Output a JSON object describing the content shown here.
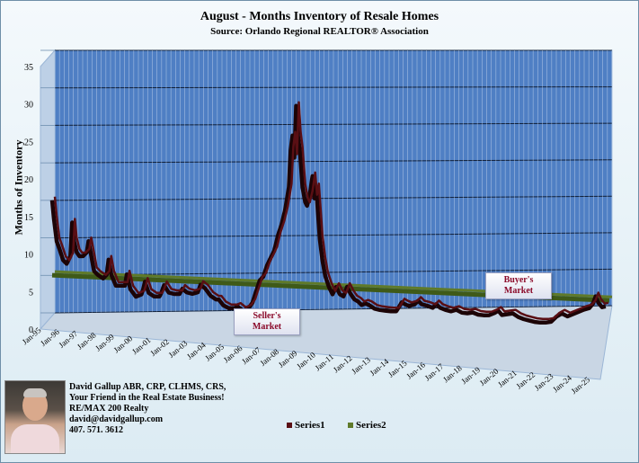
{
  "chart_data": {
    "type": "line",
    "title": "August - Months Inventory of Resale Homes",
    "subtitle": "Source: Orlando Regional REALTOR® Association",
    "ylabel": "Months of Inventory",
    "xlabel": "",
    "ylim": [
      0,
      35
    ],
    "yticks": [
      0,
      5,
      10,
      15,
      20,
      25,
      30,
      35
    ],
    "grid": true,
    "legend_placement": "bottom",
    "x_tick_labels": [
      "Jan-95",
      "Jan-96",
      "Jan-97",
      "Jan-98",
      "Jan-99",
      "Jan-00",
      "Jan-01",
      "Jan-02",
      "Jan-03",
      "Jan-04",
      "Jan-05",
      "Jan-06",
      "Jan-07",
      "Jan-08",
      "Jan-09",
      "Jan-10",
      "Jan-11",
      "Jan-12",
      "Jan-13",
      "Jan-14",
      "Jan-15",
      "Jan-16",
      "Jan-17",
      "Jan-18",
      "Jan-19",
      "Jan-20",
      "Jan-21",
      "Jan-22",
      "Jan-23",
      "Jan-24",
      "Jan-25"
    ],
    "x_start_year": 1995,
    "x_end_year": 2025.6,
    "series": [
      {
        "name": "Series1",
        "color": "#5a0f14",
        "points": [
          [
            1995.0,
            15.5
          ],
          [
            1995.1,
            13.0
          ],
          [
            1995.25,
            10.0
          ],
          [
            1995.4,
            9.0
          ],
          [
            1995.6,
            7.5
          ],
          [
            1995.8,
            7.0
          ],
          [
            1996.0,
            8.0
          ],
          [
            1996.1,
            12.5
          ],
          [
            1996.2,
            10.0
          ],
          [
            1996.35,
            8.5
          ],
          [
            1996.5,
            8.0
          ],
          [
            1996.7,
            8.0
          ],
          [
            1996.9,
            8.5
          ],
          [
            1997.0,
            10.0
          ],
          [
            1997.15,
            8.0
          ],
          [
            1997.3,
            6.0
          ],
          [
            1997.5,
            5.5
          ],
          [
            1997.8,
            5.0
          ],
          [
            1998.0,
            5.5
          ],
          [
            1998.1,
            7.5
          ],
          [
            1998.25,
            5.5
          ],
          [
            1998.5,
            4.0
          ],
          [
            1998.8,
            4.0
          ],
          [
            1999.0,
            4.0
          ],
          [
            1999.1,
            5.5
          ],
          [
            1999.3,
            3.5
          ],
          [
            1999.6,
            2.5
          ],
          [
            1999.9,
            2.8
          ],
          [
            2000.0,
            3.5
          ],
          [
            2000.1,
            4.5
          ],
          [
            2000.3,
            3.0
          ],
          [
            2000.6,
            2.5
          ],
          [
            2000.9,
            2.5
          ],
          [
            2001.0,
            3.0
          ],
          [
            2001.15,
            4.0
          ],
          [
            2001.4,
            3.0
          ],
          [
            2001.7,
            2.8
          ],
          [
            2002.0,
            2.8
          ],
          [
            2002.15,
            3.5
          ],
          [
            2002.4,
            3.0
          ],
          [
            2002.7,
            2.8
          ],
          [
            2003.0,
            3.0
          ],
          [
            2003.15,
            4.0
          ],
          [
            2003.4,
            3.5
          ],
          [
            2003.7,
            2.5
          ],
          [
            2004.0,
            2.0
          ],
          [
            2004.15,
            2.0
          ],
          [
            2004.4,
            1.2
          ],
          [
            2004.7,
            0.8
          ],
          [
            2005.0,
            0.8
          ],
          [
            2005.2,
            1.0
          ],
          [
            2005.5,
            0.4
          ],
          [
            2005.8,
            0.8
          ],
          [
            2006.0,
            1.5
          ],
          [
            2006.2,
            3.0
          ],
          [
            2006.4,
            4.5
          ],
          [
            2006.6,
            5.0
          ],
          [
            2006.8,
            6.5
          ],
          [
            2007.0,
            7.5
          ],
          [
            2007.2,
            8.5
          ],
          [
            2007.4,
            10.5
          ],
          [
            2007.6,
            12.0
          ],
          [
            2007.8,
            14.0
          ],
          [
            2008.0,
            17.0
          ],
          [
            2008.1,
            22.0
          ],
          [
            2008.2,
            24.0
          ],
          [
            2008.3,
            21.0
          ],
          [
            2008.4,
            28.0
          ],
          [
            2008.5,
            24.0
          ],
          [
            2008.6,
            22.0
          ],
          [
            2008.75,
            17.0
          ],
          [
            2008.9,
            15.0
          ],
          [
            2009.0,
            14.5
          ],
          [
            2009.15,
            16.0
          ],
          [
            2009.3,
            18.5
          ],
          [
            2009.4,
            15.5
          ],
          [
            2009.5,
            17.0
          ],
          [
            2009.6,
            13.5
          ],
          [
            2009.7,
            10.0
          ],
          [
            2009.85,
            7.0
          ],
          [
            2010.0,
            5.0
          ],
          [
            2010.2,
            3.5
          ],
          [
            2010.4,
            2.5
          ],
          [
            2010.6,
            3.5
          ],
          [
            2010.8,
            2.5
          ],
          [
            2011.0,
            2.2
          ],
          [
            2011.2,
            3.5
          ],
          [
            2011.4,
            2.5
          ],
          [
            2011.6,
            1.8
          ],
          [
            2011.8,
            1.5
          ],
          [
            2012.0,
            1.0
          ],
          [
            2012.2,
            1.2
          ],
          [
            2012.4,
            1.0
          ],
          [
            2012.7,
            0.5
          ],
          [
            2013.0,
            0.3
          ],
          [
            2013.3,
            0.2
          ],
          [
            2013.6,
            0.1
          ],
          [
            2013.9,
            0.1
          ],
          [
            2014.0,
            0.5
          ],
          [
            2014.2,
            1.3
          ],
          [
            2014.4,
            1.0
          ],
          [
            2014.6,
            0.8
          ],
          [
            2014.9,
            1.0
          ],
          [
            2015.1,
            1.5
          ],
          [
            2015.3,
            1.0
          ],
          [
            2015.6,
            0.8
          ],
          [
            2015.9,
            0.5
          ],
          [
            2016.1,
            1.0
          ],
          [
            2016.3,
            0.5
          ],
          [
            2016.6,
            0.2
          ],
          [
            2016.9,
            0.0
          ],
          [
            2017.2,
            0.2
          ],
          [
            2017.5,
            -0.2
          ],
          [
            2017.8,
            -0.3
          ],
          [
            2018.1,
            -0.2
          ],
          [
            2018.4,
            -0.5
          ],
          [
            2018.7,
            -0.6
          ],
          [
            2019.0,
            -0.6
          ],
          [
            2019.3,
            -0.3
          ],
          [
            2019.5,
            0.0
          ],
          [
            2019.7,
            -0.6
          ],
          [
            2020.0,
            -0.5
          ],
          [
            2020.3,
            -0.4
          ],
          [
            2020.6,
            -0.9
          ],
          [
            2020.9,
            -1.2
          ],
          [
            2021.2,
            -1.4
          ],
          [
            2021.5,
            -1.6
          ],
          [
            2021.8,
            -1.7
          ],
          [
            2022.1,
            -1.7
          ],
          [
            2022.4,
            -1.6
          ],
          [
            2022.7,
            -0.9
          ],
          [
            2023.0,
            -0.5
          ],
          [
            2023.3,
            -0.9
          ],
          [
            2023.6,
            -0.6
          ],
          [
            2023.9,
            -0.3
          ],
          [
            2024.2,
            0.0
          ],
          [
            2024.5,
            0.2
          ],
          [
            2024.7,
            0.8
          ],
          [
            2024.85,
            1.8
          ],
          [
            2025.0,
            0.9
          ],
          [
            2025.2,
            0.3
          ],
          [
            2025.4,
            0.4
          ]
        ]
      },
      {
        "name": "Series2",
        "color": "#5f7a2a",
        "points": [
          [
            1995.0,
            5.5
          ],
          [
            2025.6,
            1.2
          ]
        ]
      }
    ],
    "annotations": [
      {
        "text_line1": "Seller's",
        "text_line2": "Market"
      },
      {
        "text_line1": "Buyer's",
        "text_line2": "Market"
      }
    ]
  },
  "contact": {
    "line1": "David Gallup  ABR, CRP, CLHMS, CRS,",
    "line2": "Your Friend in the Real Estate Business!",
    "line3": "RE/MAX 200 Realty",
    "line4": "david@davidgallup.com",
    "line5": "407. 571. 3612"
  }
}
